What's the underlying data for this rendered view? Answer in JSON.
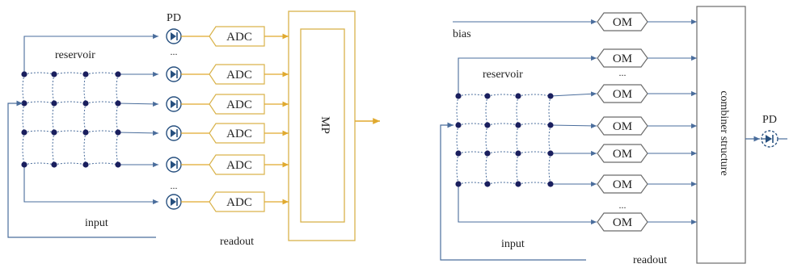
{
  "left_panel": {
    "pd_label": "PD",
    "reservoir_label": "reservoir",
    "ellipsis": "...",
    "adc_label": "ADC",
    "mp_label": "MP",
    "input_label": "input",
    "readout_label": "readout"
  },
  "right_panel": {
    "bias_label": "bias",
    "reservoir_label": "reservoir",
    "om_label": "OM",
    "ellipsis": "...",
    "combiner_label": "combiner structure",
    "pd_label": "PD",
    "input_label": "input",
    "readout_label": "readout"
  },
  "colors": {
    "wire": "#4a6d9c",
    "node": "#1a1f5e",
    "readout_line": "#e0a92e",
    "adc_border": "#d9b24a",
    "om_border": "#6b6b6b",
    "pd_fill": "#27507f"
  }
}
